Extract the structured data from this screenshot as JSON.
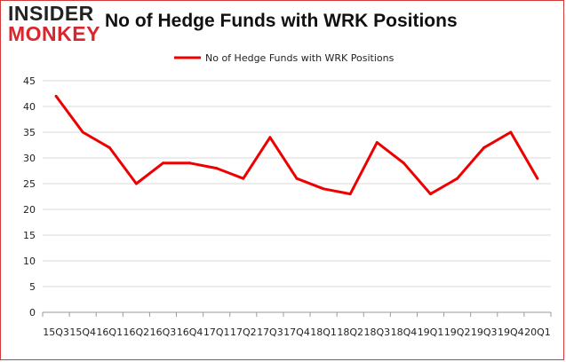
{
  "logo": {
    "line1": "INSIDER",
    "line2": "MONKEY"
  },
  "chart_data": {
    "type": "line",
    "title": "No of Hedge Funds with WRK Positions",
    "xlabel": "",
    "ylabel": "",
    "categories": [
      "15Q3",
      "15Q4",
      "16Q1",
      "16Q2",
      "16Q3",
      "16Q4",
      "17Q1",
      "17Q2",
      "17Q3",
      "17Q4",
      "18Q1",
      "18Q2",
      "18Q3",
      "18Q4",
      "19Q1",
      "19Q2",
      "19Q3",
      "19Q4",
      "20Q1"
    ],
    "series": [
      {
        "name": "No of Hedge Funds with WRK Positions",
        "color": "#ee0000",
        "values": [
          42,
          35,
          32,
          25,
          29,
          29,
          28,
          26,
          34,
          26,
          24,
          23,
          33,
          29,
          23,
          26,
          32,
          35,
          26
        ]
      }
    ],
    "ylim": [
      0,
      45
    ],
    "yticks": [
      0,
      5,
      10,
      15,
      20,
      25,
      30,
      35,
      40,
      45
    ],
    "grid": true,
    "legend": "top-center"
  }
}
